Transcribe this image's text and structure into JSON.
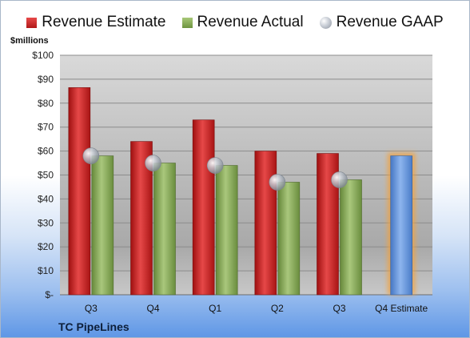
{
  "chart_data": {
    "type": "bar",
    "categories": [
      "Q3",
      "Q4",
      "Q1",
      "Q2",
      "Q3",
      "Q4 Estimate"
    ],
    "series": [
      {
        "name": "Revenue Estimate",
        "color": "#c92626",
        "values": [
          86.5,
          64,
          73,
          60,
          59,
          null
        ]
      },
      {
        "name": "Revenue Actual",
        "color": "#8aab5a",
        "values": [
          58,
          55,
          54,
          47,
          48,
          null
        ]
      },
      {
        "name": "Revenue GAAP",
        "color": "#b8bec7",
        "values": [
          58,
          55,
          54,
          47,
          48,
          null
        ]
      },
      {
        "name": "",
        "color": "#6a9be0",
        "highlight_color": "#f3a23e",
        "values": [
          null,
          null,
          null,
          null,
          null,
          58
        ]
      }
    ],
    "ylabel": "$millions",
    "ylim": [
      0,
      100
    ],
    "yticks": [
      0,
      10,
      20,
      30,
      40,
      50,
      60,
      70,
      80,
      90,
      100
    ],
    "ytick_labels": [
      "$-",
      "$10",
      "$20",
      "$30",
      "$40",
      "$50",
      "$60",
      "$70",
      "$80",
      "$90",
      "$100"
    ],
    "grid": true,
    "legend_position": "top",
    "company": "TC PipeLines"
  }
}
